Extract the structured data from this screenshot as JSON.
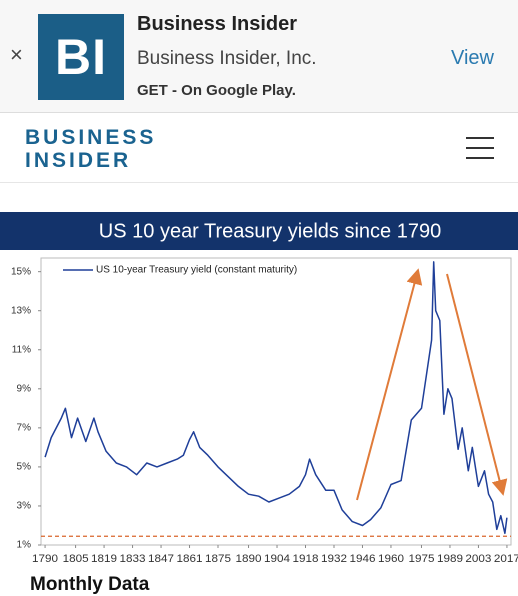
{
  "banner": {
    "logo": "BI",
    "title": "Business Insider",
    "publisher": "Business Insider, Inc.",
    "subtitle": "GET - On Google Play.",
    "action": "View",
    "close": "×"
  },
  "header": {
    "brand_line1": "BUSINESS",
    "brand_line2": "INSIDER"
  },
  "chart_data": {
    "type": "line",
    "title": "US 10 year Treasury yields since 1790",
    "x": [
      1790,
      1793,
      1798,
      1800,
      1803,
      1806,
      1810,
      1814,
      1816,
      1820,
      1825,
      1830,
      1835,
      1840,
      1845,
      1850,
      1855,
      1858,
      1861,
      1863,
      1866,
      1870,
      1875,
      1880,
      1885,
      1890,
      1895,
      1900,
      1905,
      1910,
      1915,
      1918,
      1920,
      1923,
      1928,
      1932,
      1936,
      1941,
      1946,
      1950,
      1955,
      1960,
      1965,
      1970,
      1975,
      1980,
      1981,
      1982,
      1984,
      1986,
      1988,
      1990,
      1993,
      1995,
      1998,
      2000,
      2003,
      2006,
      2008,
      2010,
      2012,
      2014,
      2016,
      2017
    ],
    "series": [
      {
        "name": "US 10-year Treasury yield (constant maturity)",
        "color": "#1f3f99",
        "values": [
          5.5,
          6.5,
          7.5,
          8.0,
          6.5,
          7.5,
          6.3,
          7.5,
          6.8,
          5.8,
          5.2,
          5.0,
          4.6,
          5.2,
          5.0,
          5.2,
          5.4,
          5.6,
          6.4,
          6.8,
          6.0,
          5.6,
          5.0,
          4.5,
          4.0,
          3.6,
          3.5,
          3.2,
          3.4,
          3.6,
          4.0,
          4.6,
          5.4,
          4.6,
          3.8,
          3.8,
          2.8,
          2.2,
          2.0,
          2.3,
          2.9,
          4.1,
          4.3,
          7.4,
          8.0,
          11.5,
          15.5,
          13.0,
          12.5,
          7.7,
          9.0,
          8.5,
          5.9,
          7.0,
          4.8,
          6.0,
          4.0,
          4.8,
          3.6,
          3.2,
          1.8,
          2.5,
          1.6,
          2.4
        ]
      }
    ],
    "xlim": [
      1788,
      2019
    ],
    "xticks": [
      1790,
      1805,
      1819,
      1833,
      1847,
      1861,
      1875,
      1890,
      1904,
      1918,
      1932,
      1946,
      1960,
      1975,
      1989,
      2003,
      2017
    ],
    "ylim": [
      1,
      15.7
    ],
    "yticks": [
      {
        "value": 1,
        "label": "1%"
      },
      {
        "value": 3,
        "label": "3%"
      },
      {
        "value": 5,
        "label": "5%"
      },
      {
        "value": 7,
        "label": "7%"
      },
      {
        "value": 9,
        "label": "9%"
      },
      {
        "value": 11,
        "label": "11%"
      },
      {
        "value": 13,
        "label": "13%"
      },
      {
        "value": 15,
        "label": "15%"
      }
    ],
    "hline": 1.45,
    "hline_color": "#d9652b"
  },
  "footer": "Monthly Data"
}
